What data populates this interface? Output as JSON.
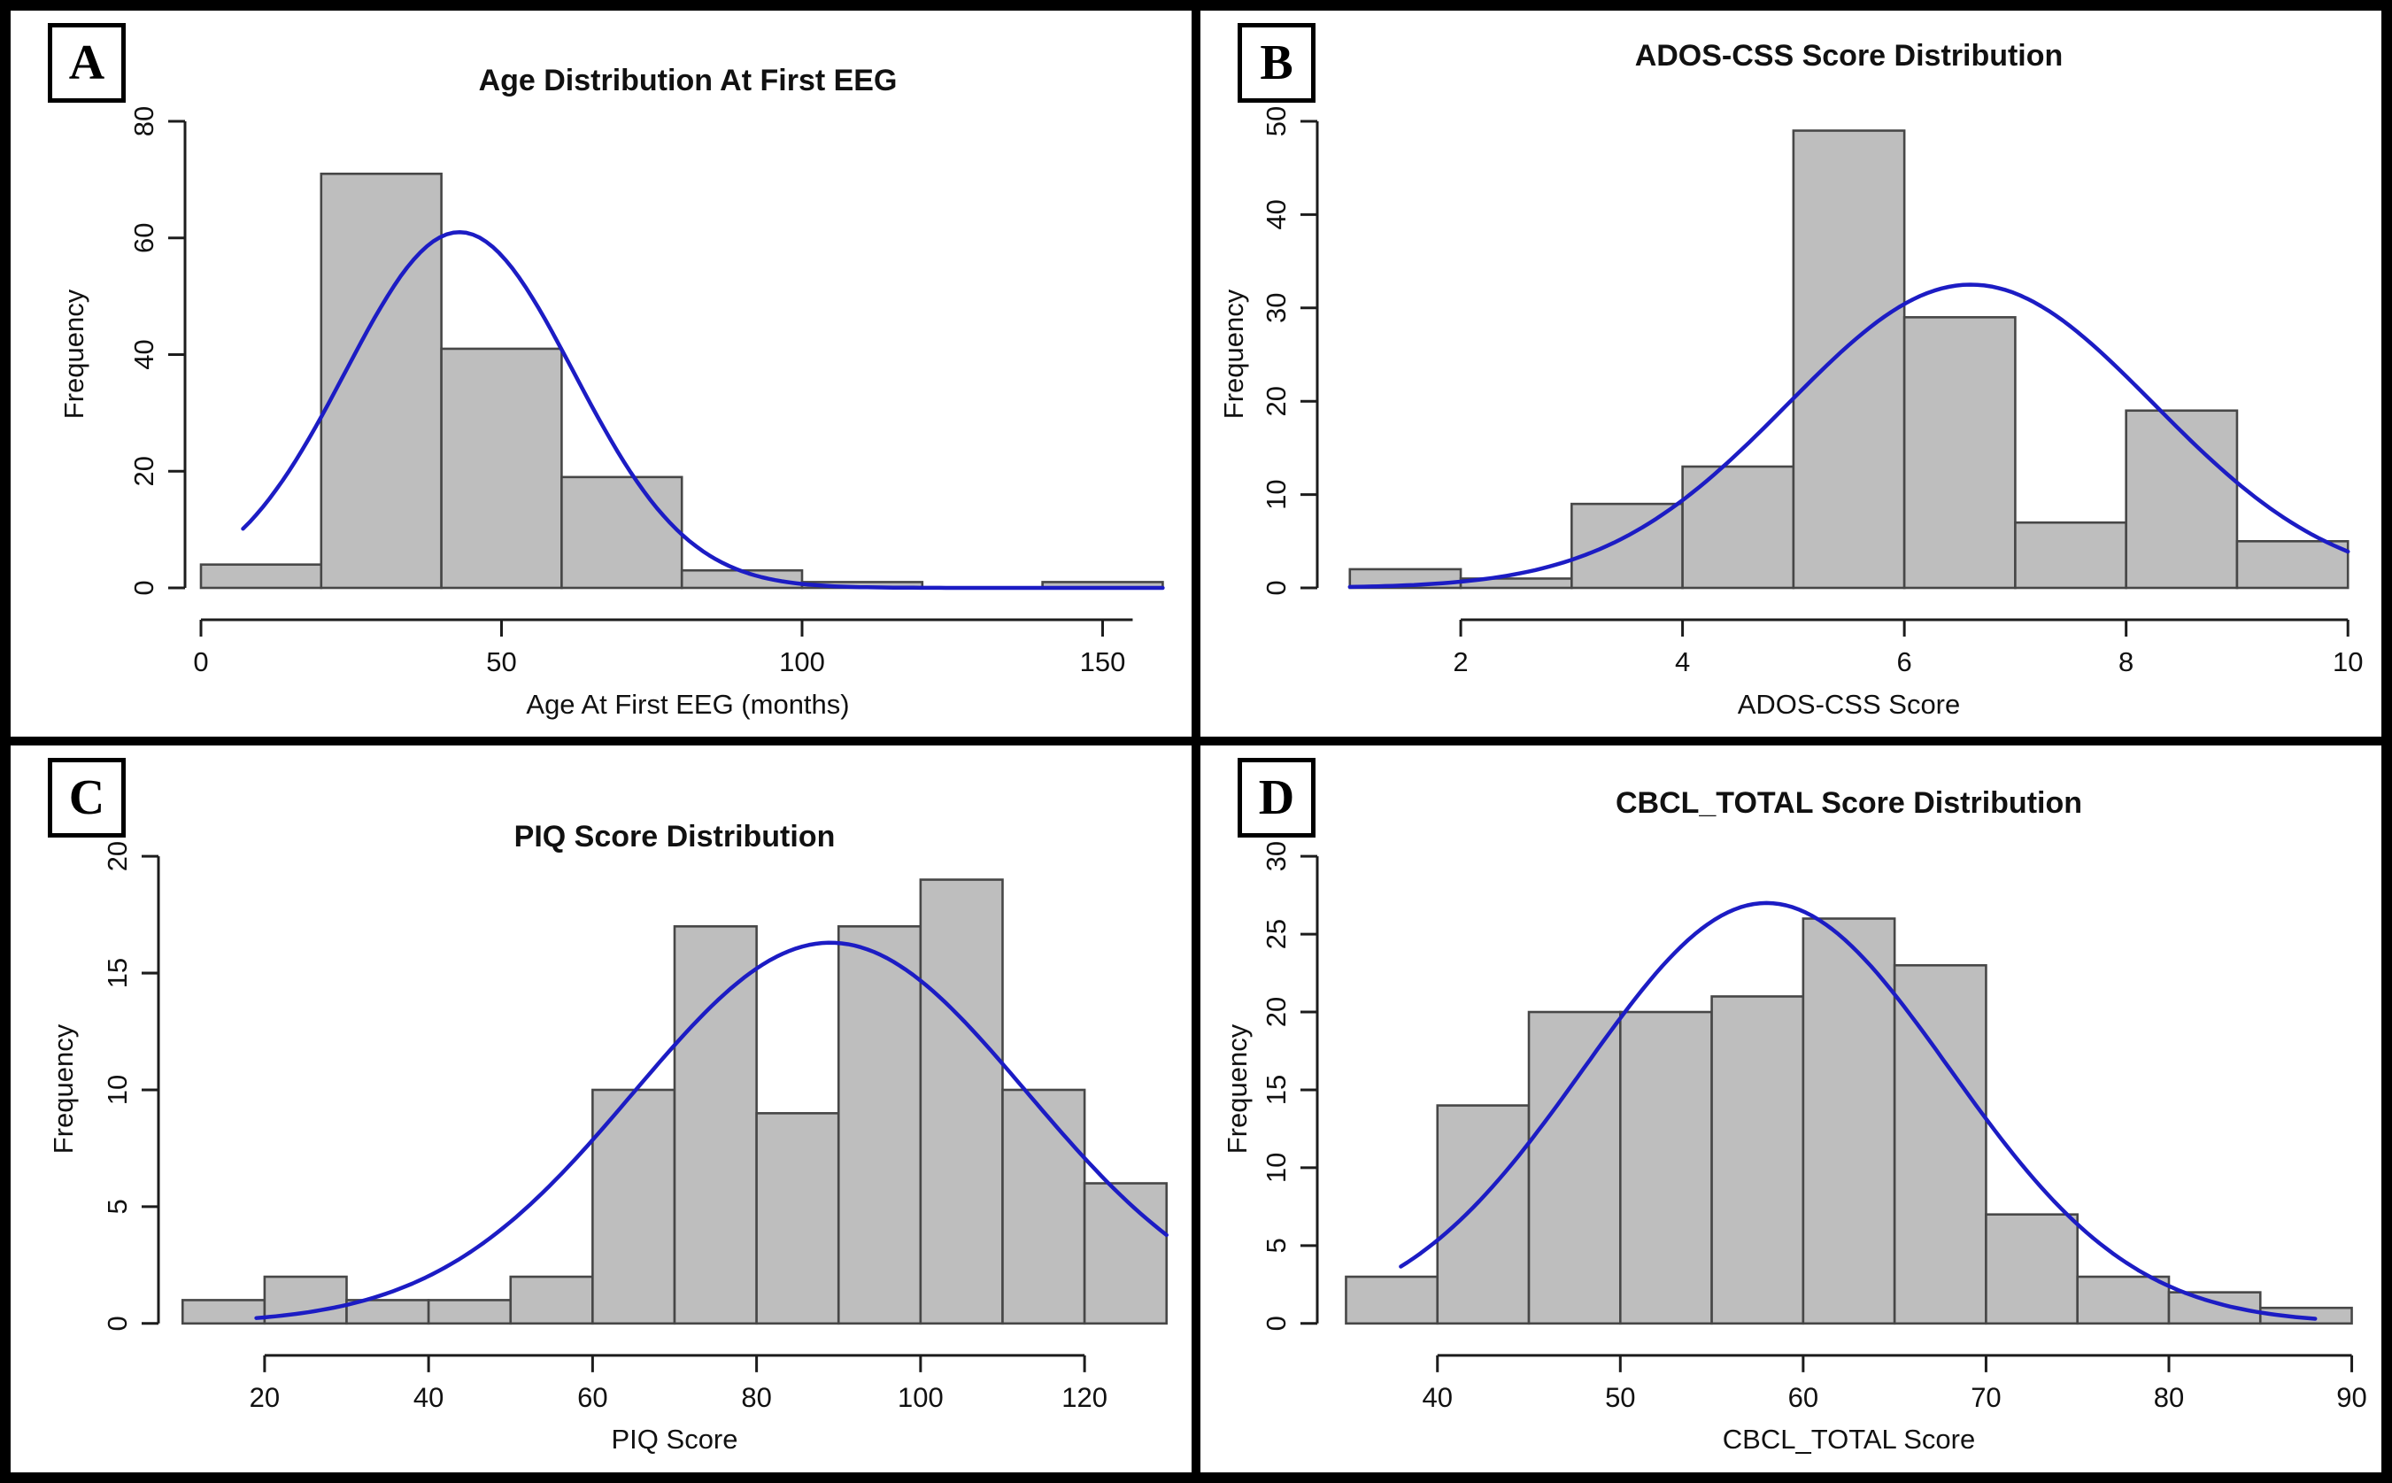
{
  "figure_title": "",
  "colors": {
    "bar_fill": "#bebebe",
    "bar_stroke": "#474747",
    "curve": "#1c1cc4",
    "axis": "#1c1c1c",
    "text": "#111111",
    "frame": "#000000",
    "background": "#ffffff"
  },
  "chart_data": [
    {
      "type": "bar",
      "subtype": "histogram-with-normal-curve",
      "panel_label": "A",
      "title": "Age Distribution At First EEG",
      "xlabel": "Age At First EEG (months)",
      "ylabel": "Frequency",
      "bin_start": 0,
      "bin_width": 20,
      "counts": [
        4,
        71,
        41,
        19,
        3,
        1,
        0,
        1
      ],
      "bin_edges": [
        0,
        20,
        40,
        60,
        80,
        100,
        120,
        140,
        160
      ],
      "x_ticks": [
        0,
        50,
        100,
        150
      ],
      "y_ticks": [
        0,
        20,
        40,
        60,
        80
      ],
      "xlim": [
        0,
        162
      ],
      "ylim": [
        0,
        80
      ],
      "axis_line_x_range": [
        0,
        155
      ],
      "grid": false,
      "curve": {
        "mean": 43,
        "sd": 19,
        "peak": 61,
        "x_start": 7,
        "x_end": 160
      },
      "layout": {
        "plot_left": 215
      }
    },
    {
      "type": "bar",
      "subtype": "histogram-with-normal-curve",
      "panel_label": "B",
      "title": "ADOS-CSS Score Distribution",
      "xlabel": "ADOS-CSS Score",
      "ylabel": "Frequency",
      "bin_start": 1,
      "bin_width": 1,
      "counts": [
        2,
        1,
        9,
        13,
        49,
        29,
        7,
        19,
        5
      ],
      "bin_edges": [
        1,
        2,
        3,
        4,
        5,
        6,
        7,
        8,
        9,
        10
      ],
      "x_ticks": [
        2,
        4,
        6,
        8,
        10
      ],
      "y_ticks": [
        0,
        10,
        20,
        30,
        40,
        50
      ],
      "xlim": [
        0.85,
        10.15
      ],
      "ylim": [
        0,
        50
      ],
      "axis_line_x_range": [
        2,
        10
      ],
      "grid": false,
      "curve": {
        "mean": 6.6,
        "sd": 1.65,
        "peak": 32.5,
        "x_start": 1,
        "x_end": 10
      },
      "layout": {
        "plot_left": 150
      }
    },
    {
      "type": "bar",
      "subtype": "histogram-with-normal-curve",
      "panel_label": "C",
      "title": "PIQ Score Distribution",
      "xlabel": "PIQ Score",
      "ylabel": "Frequency",
      "bin_start": 10,
      "bin_width": 10,
      "counts": [
        1,
        2,
        1,
        1,
        2,
        10,
        17,
        9,
        17,
        19,
        10,
        6
      ],
      "bin_edges": [
        10,
        20,
        30,
        40,
        50,
        60,
        70,
        80,
        90,
        100,
        110,
        120,
        130
      ],
      "x_ticks": [
        20,
        40,
        60,
        80,
        100,
        120
      ],
      "y_ticks": [
        0,
        5,
        10,
        15,
        20
      ],
      "xlim": [
        9,
        131
      ],
      "ylim": [
        0,
        20
      ],
      "axis_line_x_range": [
        20,
        120
      ],
      "grid": false,
      "curve": {
        "mean": 89,
        "sd": 24,
        "peak": 16.3,
        "x_start": 19,
        "x_end": 130
      },
      "layout": {
        "plot_left": 185
      }
    },
    {
      "type": "bar",
      "subtype": "histogram-with-normal-curve",
      "panel_label": "D",
      "title": "CBCL_TOTAL Score Distribution",
      "xlabel": "CBCL_TOTAL Score",
      "ylabel": "Frequency",
      "bin_start": 35,
      "bin_width": 5,
      "counts": [
        3,
        14,
        20,
        20,
        21,
        26,
        23,
        7,
        3,
        2,
        1
      ],
      "bin_edges": [
        35,
        40,
        45,
        50,
        55,
        60,
        65,
        70,
        75,
        80,
        85,
        90
      ],
      "x_ticks": [
        40,
        50,
        60,
        70,
        80,
        90
      ],
      "y_ticks": [
        0,
        5,
        10,
        15,
        20,
        25,
        30
      ],
      "xlim": [
        34.3,
        90.7
      ],
      "ylim": [
        0,
        30
      ],
      "axis_line_x_range": [
        40,
        90
      ],
      "grid": false,
      "curve": {
        "mean": 58,
        "sd": 10,
        "peak": 27,
        "x_start": 38,
        "x_end": 88
      },
      "layout": {
        "plot_left": 150
      }
    }
  ]
}
